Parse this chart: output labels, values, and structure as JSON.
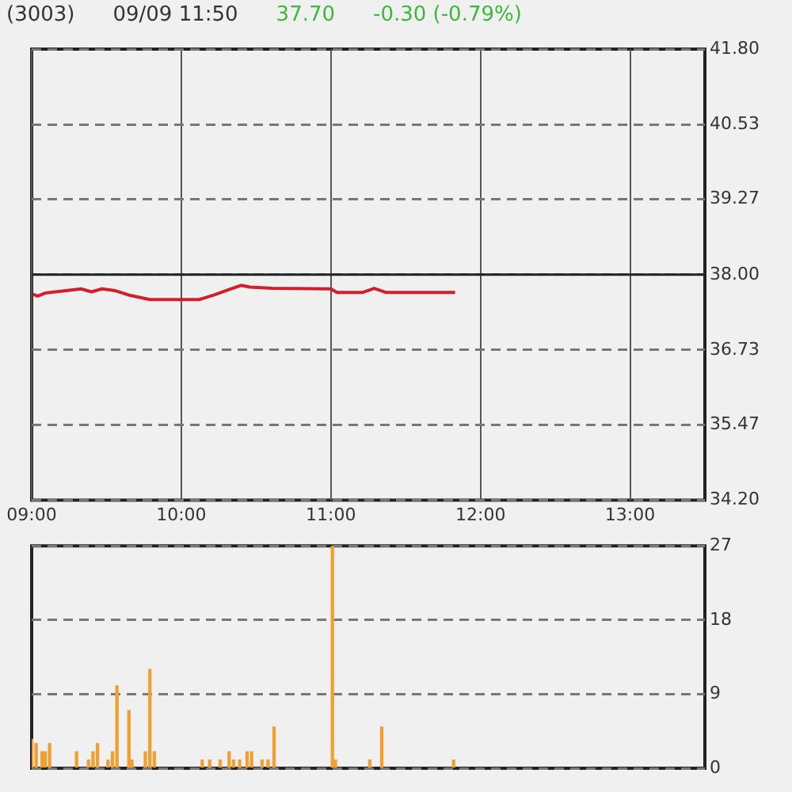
{
  "chart_data": [
    {
      "type": "line",
      "title": "(3003)",
      "subtitle": "09/09 11:50",
      "annotations": [
        "37.70",
        "-0.30 (-0.79%)"
      ],
      "x": [
        9.01,
        9.04,
        9.09,
        9.33,
        9.4,
        9.47,
        9.56,
        9.66,
        9.79,
        10.12,
        10.22,
        10.33,
        10.4,
        10.46,
        10.61,
        11.0,
        11.04,
        11.21,
        11.29,
        11.37,
        11.83
      ],
      "series": [
        {
          "color": "#d0202c",
          "values": [
            37.67,
            37.64,
            37.69,
            37.76,
            37.71,
            37.76,
            37.73,
            37.65,
            37.58,
            37.58,
            37.66,
            37.76,
            37.82,
            37.79,
            37.77,
            37.76,
            37.7,
            37.7,
            37.77,
            37.7,
            37.7
          ]
        }
      ],
      "xlim": [
        9,
        13.5
      ],
      "xticks": [
        {
          "value": 9,
          "label": "09:00"
        },
        {
          "value": 10,
          "label": "10:00"
        },
        {
          "value": 11,
          "label": "11:00"
        },
        {
          "value": 12,
          "label": "12:00"
        },
        {
          "value": 13,
          "label": "13:00"
        }
      ],
      "ylim": [
        34.2,
        41.8
      ],
      "yticks": [
        {
          "value": 34.2,
          "label": "34.20"
        },
        {
          "value": 35.47,
          "label": "35.47"
        },
        {
          "value": 36.73,
          "label": "36.73"
        },
        {
          "value": 38,
          "label": "38.00"
        },
        {
          "value": 39.27,
          "label": "39.27"
        },
        {
          "value": 40.53,
          "label": "40.53"
        },
        {
          "value": 41.8,
          "label": "41.80"
        }
      ],
      "ref_lines": [
        {
          "axis": "y",
          "value": 38,
          "color": "#222222"
        }
      ],
      "grid": true,
      "marker": "none",
      "line_style": "solid",
      "legend": false
    },
    {
      "type": "bar",
      "x": [
        9.0,
        9.03,
        9.07,
        9.09,
        9.12,
        9.3,
        9.38,
        9.41,
        9.44,
        9.51,
        9.54,
        9.57,
        9.65,
        9.67,
        9.76,
        9.79,
        9.82,
        10.14,
        10.19,
        10.26,
        10.32,
        10.35,
        10.39,
        10.44,
        10.47,
        10.54,
        10.58,
        10.62,
        11.01,
        11.03,
        11.26,
        11.34,
        11.82
      ],
      "series": [
        {
          "color": "#f0a030",
          "values": [
            3.5,
            3,
            2,
            2,
            3,
            2,
            1,
            2,
            3,
            1,
            2,
            10,
            7,
            1,
            2,
            12,
            2,
            1,
            1,
            1,
            2,
            1,
            1,
            2,
            2,
            1,
            1,
            5,
            27,
            1,
            1,
            5,
            1
          ]
        }
      ],
      "xlim": [
        9,
        13.5
      ],
      "ylim": [
        0,
        27
      ],
      "yticks": [
        0,
        9,
        18,
        27
      ],
      "grid": "y",
      "tick_labels": "y",
      "legend": false
    }
  ]
}
